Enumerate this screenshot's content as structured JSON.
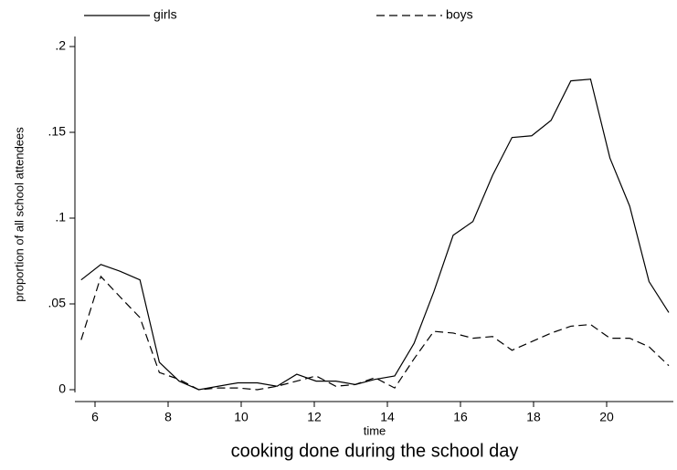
{
  "chart_data": {
    "type": "line",
    "title": "cooking done during the school day",
    "xlabel": "time",
    "ylabel": "proportion of all school attendees",
    "x": [
      5.62,
      6.16,
      6.69,
      7.23,
      7.76,
      8.3,
      8.84,
      9.37,
      9.91,
      10.44,
      10.98,
      11.52,
      12.05,
      12.59,
      13.12,
      13.66,
      14.2,
      14.73,
      15.27,
      15.8,
      16.34,
      16.88,
      17.41,
      17.95,
      18.48,
      19.02,
      19.56,
      20.09,
      20.63,
      21.16,
      21.7
    ],
    "series": [
      {
        "name": "girls",
        "color": "#000000",
        "dash": "solid",
        "values": [
          0.064,
          0.073,
          0.069,
          0.064,
          0.016,
          0.005,
          0.0,
          0.002,
          0.004,
          0.004,
          0.002,
          0.009,
          0.005,
          0.005,
          0.003,
          0.006,
          0.008,
          0.027,
          0.057,
          0.09,
          0.098,
          0.125,
          0.147,
          0.148,
          0.157,
          0.18,
          0.181,
          0.135,
          0.107,
          0.063,
          0.045
        ]
      },
      {
        "name": "boys",
        "color": "#000000",
        "dash": "dashed",
        "values": [
          0.029,
          0.066,
          0.054,
          0.042,
          0.01,
          0.006,
          0.0,
          0.001,
          0.001,
          0.0,
          0.002,
          0.005,
          0.008,
          0.002,
          0.003,
          0.007,
          0.001,
          0.018,
          0.034,
          0.033,
          0.03,
          0.031,
          0.023,
          0.028,
          0.033,
          0.037,
          0.038,
          0.03,
          0.03,
          0.025,
          0.014
        ]
      }
    ],
    "xlim": [
      5.5,
      21.8
    ],
    "xticks": [
      6,
      8,
      10,
      12,
      14,
      16,
      18,
      20
    ],
    "ylim": [
      0,
      0.2
    ],
    "yticks": [
      0,
      {
        "value": 0.05,
        "label": ".05"
      },
      {
        "value": 0.1,
        "label": ".1"
      },
      {
        "value": 0.15,
        "label": ".15"
      },
      {
        "value": 0.2,
        "label": ".2"
      }
    ],
    "legend": "top"
  }
}
